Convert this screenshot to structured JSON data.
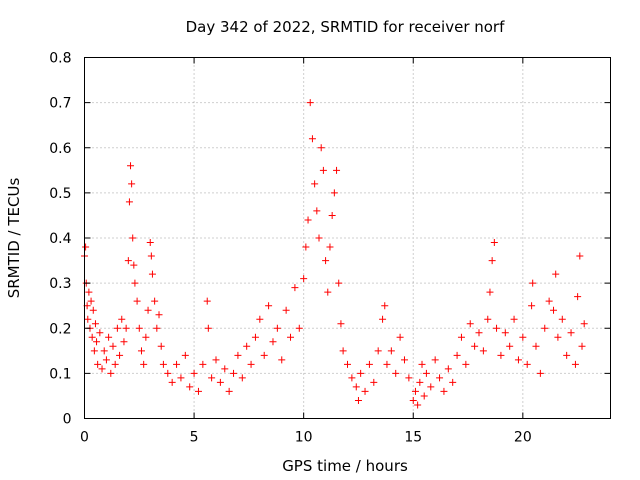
{
  "chart_data": {
    "type": "scatter",
    "title": "Day 342 of 2022, SRMTID for receiver norf",
    "xlabel": "GPS time / hours",
    "ylabel": "SRMTID / TECUs",
    "xlim": [
      0,
      24
    ],
    "ylim": [
      0,
      0.8
    ],
    "xticks": [
      0,
      5,
      10,
      15,
      20
    ],
    "xtick_labels": [
      "0",
      "5",
      "10",
      "15",
      "20"
    ],
    "yticks": [
      0,
      0.1,
      0.2,
      0.3,
      0.4,
      0.5,
      0.6,
      0.7,
      0.8
    ],
    "ytick_labels": [
      "0",
      "0.1",
      "0.2",
      "0.3",
      "0.4",
      "0.5",
      "0.6",
      "0.7",
      "0.8"
    ],
    "grid": true,
    "marker": "+",
    "color": "#ff0000",
    "series": [
      {
        "name": "SRMTID",
        "points": [
          [
            0.0,
            0.36
          ],
          [
            0.05,
            0.38
          ],
          [
            0.08,
            0.3
          ],
          [
            0.12,
            0.25
          ],
          [
            0.15,
            0.22
          ],
          [
            0.2,
            0.28
          ],
          [
            0.25,
            0.2
          ],
          [
            0.3,
            0.26
          ],
          [
            0.35,
            0.18
          ],
          [
            0.4,
            0.24
          ],
          [
            0.45,
            0.15
          ],
          [
            0.5,
            0.21
          ],
          [
            0.55,
            0.17
          ],
          [
            0.6,
            0.12
          ],
          [
            0.7,
            0.19
          ],
          [
            0.8,
            0.11
          ],
          [
            0.9,
            0.15
          ],
          [
            1.0,
            0.13
          ],
          [
            1.1,
            0.18
          ],
          [
            1.2,
            0.1
          ],
          [
            1.3,
            0.16
          ],
          [
            1.4,
            0.12
          ],
          [
            1.5,
            0.2
          ],
          [
            1.6,
            0.14
          ],
          [
            1.7,
            0.22
          ],
          [
            1.8,
            0.17
          ],
          [
            1.9,
            0.2
          ],
          [
            2.0,
            0.35
          ],
          [
            2.05,
            0.48
          ],
          [
            2.1,
            0.56
          ],
          [
            2.15,
            0.52
          ],
          [
            2.2,
            0.4
          ],
          [
            2.25,
            0.34
          ],
          [
            2.3,
            0.3
          ],
          [
            2.4,
            0.26
          ],
          [
            2.5,
            0.2
          ],
          [
            2.6,
            0.15
          ],
          [
            2.7,
            0.12
          ],
          [
            2.8,
            0.18
          ],
          [
            2.9,
            0.24
          ],
          [
            3.0,
            0.39
          ],
          [
            3.05,
            0.36
          ],
          [
            3.1,
            0.32
          ],
          [
            3.2,
            0.26
          ],
          [
            3.3,
            0.2
          ],
          [
            3.4,
            0.23
          ],
          [
            3.5,
            0.16
          ],
          [
            3.6,
            0.12
          ],
          [
            3.8,
            0.1
          ],
          [
            4.0,
            0.08
          ],
          [
            4.2,
            0.12
          ],
          [
            4.4,
            0.09
          ],
          [
            4.6,
            0.14
          ],
          [
            4.8,
            0.07
          ],
          [
            5.0,
            0.1
          ],
          [
            5.2,
            0.06
          ],
          [
            5.4,
            0.12
          ],
          [
            5.6,
            0.26
          ],
          [
            5.65,
            0.2
          ],
          [
            5.8,
            0.09
          ],
          [
            6.0,
            0.13
          ],
          [
            6.2,
            0.08
          ],
          [
            6.4,
            0.11
          ],
          [
            6.6,
            0.06
          ],
          [
            6.8,
            0.1
          ],
          [
            7.0,
            0.14
          ],
          [
            7.2,
            0.09
          ],
          [
            7.4,
            0.16
          ],
          [
            7.6,
            0.12
          ],
          [
            7.8,
            0.18
          ],
          [
            8.0,
            0.22
          ],
          [
            8.2,
            0.14
          ],
          [
            8.4,
            0.25
          ],
          [
            8.6,
            0.17
          ],
          [
            8.8,
            0.2
          ],
          [
            9.0,
            0.13
          ],
          [
            9.2,
            0.24
          ],
          [
            9.4,
            0.18
          ],
          [
            9.6,
            0.29
          ],
          [
            9.8,
            0.2
          ],
          [
            10.0,
            0.31
          ],
          [
            10.1,
            0.38
          ],
          [
            10.2,
            0.44
          ],
          [
            10.3,
            0.7
          ],
          [
            10.4,
            0.62
          ],
          [
            10.5,
            0.52
          ],
          [
            10.6,
            0.46
          ],
          [
            10.7,
            0.4
          ],
          [
            10.8,
            0.6
          ],
          [
            10.9,
            0.55
          ],
          [
            11.0,
            0.35
          ],
          [
            11.1,
            0.28
          ],
          [
            11.2,
            0.38
          ],
          [
            11.3,
            0.45
          ],
          [
            11.4,
            0.5
          ],
          [
            11.5,
            0.55
          ],
          [
            11.6,
            0.3
          ],
          [
            11.7,
            0.21
          ],
          [
            11.8,
            0.15
          ],
          [
            12.0,
            0.12
          ],
          [
            12.2,
            0.09
          ],
          [
            12.4,
            0.07
          ],
          [
            12.5,
            0.04
          ],
          [
            12.6,
            0.1
          ],
          [
            12.8,
            0.06
          ],
          [
            13.0,
            0.12
          ],
          [
            13.2,
            0.08
          ],
          [
            13.4,
            0.15
          ],
          [
            13.6,
            0.22
          ],
          [
            13.7,
            0.25
          ],
          [
            13.8,
            0.12
          ],
          [
            14.0,
            0.15
          ],
          [
            14.2,
            0.1
          ],
          [
            14.4,
            0.18
          ],
          [
            14.6,
            0.13
          ],
          [
            14.8,
            0.09
          ],
          [
            15.0,
            0.04
          ],
          [
            15.1,
            0.06
          ],
          [
            15.2,
            0.03
          ],
          [
            15.3,
            0.08
          ],
          [
            15.4,
            0.12
          ],
          [
            15.5,
            0.05
          ],
          [
            15.6,
            0.1
          ],
          [
            15.8,
            0.07
          ],
          [
            16.0,
            0.13
          ],
          [
            16.2,
            0.09
          ],
          [
            16.4,
            0.06
          ],
          [
            16.6,
            0.11
          ],
          [
            16.8,
            0.08
          ],
          [
            17.0,
            0.14
          ],
          [
            17.2,
            0.18
          ],
          [
            17.4,
            0.12
          ],
          [
            17.6,
            0.21
          ],
          [
            17.8,
            0.16
          ],
          [
            18.0,
            0.19
          ],
          [
            18.2,
            0.15
          ],
          [
            18.4,
            0.22
          ],
          [
            18.5,
            0.28
          ],
          [
            18.6,
            0.35
          ],
          [
            18.7,
            0.39
          ],
          [
            18.8,
            0.2
          ],
          [
            19.0,
            0.14
          ],
          [
            19.2,
            0.19
          ],
          [
            19.4,
            0.16
          ],
          [
            19.6,
            0.22
          ],
          [
            19.8,
            0.13
          ],
          [
            20.0,
            0.18
          ],
          [
            20.2,
            0.12
          ],
          [
            20.4,
            0.25
          ],
          [
            20.45,
            0.3
          ],
          [
            20.6,
            0.16
          ],
          [
            20.8,
            0.1
          ],
          [
            21.0,
            0.2
          ],
          [
            21.2,
            0.26
          ],
          [
            21.4,
            0.24
          ],
          [
            21.5,
            0.32
          ],
          [
            21.6,
            0.18
          ],
          [
            21.8,
            0.22
          ],
          [
            22.0,
            0.14
          ],
          [
            22.2,
            0.19
          ],
          [
            22.4,
            0.12
          ],
          [
            22.5,
            0.27
          ],
          [
            22.6,
            0.36
          ],
          [
            22.7,
            0.16
          ],
          [
            22.8,
            0.21
          ]
        ]
      }
    ]
  }
}
